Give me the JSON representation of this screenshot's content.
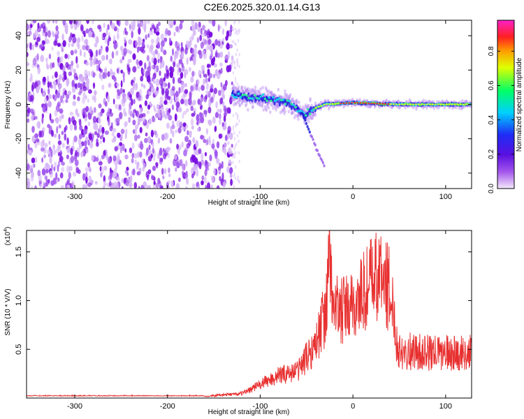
{
  "title": "C2E6.2025.320.01.14.G13",
  "colors": {
    "spectrogram_base": "#8a1fe6",
    "snr_line": "#e83030",
    "axes": "#000000"
  },
  "chart_data": [
    {
      "type": "heatmap",
      "xlabel": "Height of straight line (km)",
      "ylabel": "Frequency (Hz)",
      "xlim": [
        -352,
        128
      ],
      "ylim": [
        -49,
        49
      ],
      "x_ticks": [
        -300,
        -200,
        -100,
        0,
        100
      ],
      "y_ticks": [
        -40,
        -20,
        0,
        20,
        40
      ],
      "colorbar": {
        "label": "Normalized spectral amplitude",
        "range": [
          0,
          0.98
        ],
        "ticks": [
          "0.0",
          "0.2",
          "0.4",
          "0.6",
          "0.8"
        ],
        "colormap": "rainbow (purple-blue-cyan-green-yellow-red-magenta)"
      },
      "features": {
        "noise_region_x": [
          -352,
          -130
        ],
        "signal_band_x": [
          -130,
          128
        ],
        "signal_center_freq_hz": [
          [
            -130,
            6
          ],
          [
            -110,
            4
          ],
          [
            -90,
            3
          ],
          [
            -80,
            2
          ],
          [
            -70,
            1
          ],
          [
            -60,
            -2
          ],
          [
            -52,
            -6
          ],
          [
            -45,
            -3
          ],
          [
            -30,
            0
          ],
          [
            0,
            1
          ],
          [
            50,
            0
          ],
          [
            128,
            0
          ]
        ],
        "descending_branch": [
          [
            -55,
            -5
          ],
          [
            -48,
            -14
          ],
          [
            -40,
            -25
          ],
          [
            -30,
            -37
          ]
        ]
      }
    },
    {
      "type": "line",
      "xlabel": "Height of straight line (km)",
      "ylabel": "SNR (10 * V/V)",
      "y_scale_label": "(x10",
      "y_scale_exp": "4",
      "y_scale_close": ")",
      "xlim": [
        -352,
        128
      ],
      "ylim": [
        0,
        1.72
      ],
      "x_ticks": [
        -300,
        -200,
        -100,
        0,
        100
      ],
      "y_ticks": [
        "0.5",
        "1.0",
        "1.5"
      ],
      "series": [
        {
          "envelope": [
            [
              -352,
              0.02
            ],
            [
              -160,
              0.02
            ],
            [
              -120,
              0.05
            ],
            [
              -100,
              0.15
            ],
            [
              -80,
              0.25
            ],
            [
              -60,
              0.3
            ],
            [
              -50,
              0.45
            ],
            [
              -40,
              0.6
            ],
            [
              -30,
              0.95
            ],
            [
              -25,
              1.5
            ],
            [
              -22,
              1.1
            ],
            [
              -15,
              0.95
            ],
            [
              0,
              1.0
            ],
            [
              10,
              1.15
            ],
            [
              20,
              1.3
            ],
            [
              30,
              1.35
            ],
            [
              38,
              1.25
            ],
            [
              45,
              0.9
            ],
            [
              48,
              0.55
            ],
            [
              60,
              0.52
            ],
            [
              80,
              0.5
            ],
            [
              128,
              0.5
            ]
          ]
        }
      ]
    }
  ]
}
